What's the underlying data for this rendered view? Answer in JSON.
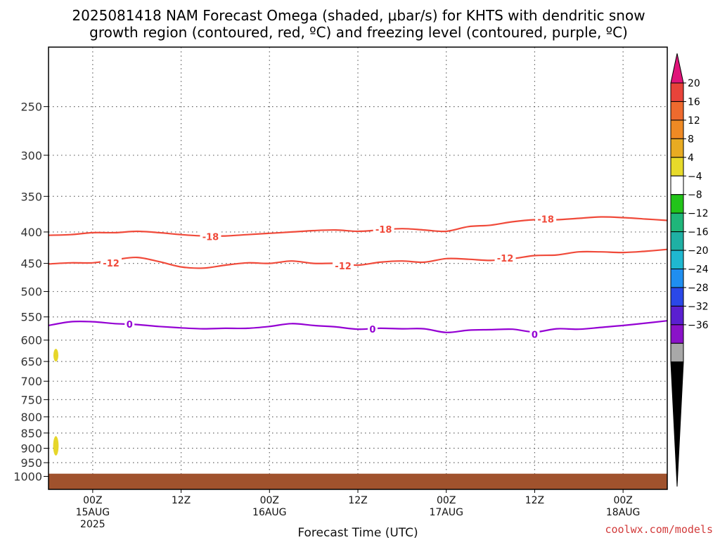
{
  "title": {
    "line1": "2025081418 NAM Forecast Omega (shaded, μbar/s) for KHTS with dendritic snow",
    "line2": "growth region (contoured, red, ºC) and freezing level (contoured, purple, ºC)"
  },
  "credit": "coolwx.com/models",
  "chart_data": {
    "type": "line",
    "title": "2025081418 NAM Forecast Omega (shaded, μbar/s) for KHTS with dendritic snow growth region (contoured, red, ºC) and freezing level (contoured, purple, ºC)",
    "xlabel": "Forecast Time (UTC)",
    "ylabel": "",
    "x_unit": "forecast hour from 2025081418",
    "xlim": [
      0,
      84
    ],
    "y_scale": "log-pressure (inverted)",
    "ylim": [
      1050,
      200
    ],
    "grid": true,
    "y_ticks": [
      250,
      300,
      350,
      400,
      450,
      500,
      550,
      600,
      650,
      700,
      750,
      800,
      850,
      900,
      950,
      1000
    ],
    "y_tick_labels": [
      "250",
      "300",
      "350",
      "400",
      "450",
      "500",
      "550",
      "600",
      "650",
      "700",
      "750",
      "800",
      "850",
      "900",
      "950",
      "1000"
    ],
    "x_ticks": [
      {
        "hour": 6,
        "labels": [
          "00Z",
          "15AUG",
          "2025"
        ]
      },
      {
        "hour": 18,
        "labels": [
          "12Z"
        ]
      },
      {
        "hour": 30,
        "labels": [
          "00Z",
          "16AUG"
        ]
      },
      {
        "hour": 42,
        "labels": [
          "12Z"
        ]
      },
      {
        "hour": 54,
        "labels": [
          "00Z",
          "17AUG"
        ]
      },
      {
        "hour": 66,
        "labels": [
          "12Z"
        ]
      },
      {
        "hour": 78,
        "labels": [
          "00Z",
          "18AUG"
        ]
      }
    ],
    "series": [
      {
        "contour_label": "-18",
        "color": "#f04a3a",
        "x": [
          0,
          3,
          6,
          9,
          12,
          15,
          18,
          21,
          24,
          27,
          30,
          33,
          36,
          39,
          42,
          45,
          48,
          51,
          54,
          57,
          60,
          63,
          66,
          69,
          72,
          75,
          78,
          81,
          84
        ],
        "y": [
          405,
          404,
          401,
          401,
          399,
          401,
          404,
          406,
          406,
          404,
          402,
          400,
          398,
          397,
          399,
          397,
          395,
          397,
          399,
          392,
          390,
          385,
          382,
          382,
          380,
          378,
          379,
          381,
          383
        ],
        "label_positions": [
          {
            "x": 22,
            "y": 407
          },
          {
            "x": 45.5,
            "y": 396
          },
          {
            "x": 67.5,
            "y": 381
          }
        ]
      },
      {
        "contour_label": "-12",
        "color": "#f04a3a",
        "x": [
          0,
          3,
          6,
          9,
          12,
          15,
          18,
          21,
          24,
          27,
          30,
          33,
          36,
          39,
          42,
          45,
          48,
          51,
          54,
          57,
          60,
          63,
          66,
          69,
          72,
          75,
          78,
          81,
          84
        ],
        "y": [
          451,
          449,
          449,
          444,
          440,
          447,
          456,
          458,
          453,
          449,
          450,
          446,
          450,
          450,
          453,
          448,
          446,
          448,
          442,
          443,
          445,
          442,
          437,
          436,
          431,
          431,
          432,
          430,
          427
        ],
        "label_positions": [
          {
            "x": 8.5,
            "y": 449
          },
          {
            "x": 40,
            "y": 454
          },
          {
            "x": 62,
            "y": 441
          }
        ]
      },
      {
        "contour_label": "0",
        "color": "#9400d3",
        "x": [
          0,
          3,
          6,
          9,
          12,
          15,
          18,
          21,
          24,
          27,
          30,
          33,
          36,
          39,
          42,
          45,
          48,
          51,
          54,
          57,
          60,
          63,
          66,
          69,
          72,
          75,
          78,
          81,
          84
        ],
        "y": [
          568,
          560,
          560,
          564,
          566,
          570,
          573,
          575,
          574,
          574,
          570,
          564,
          568,
          571,
          576,
          574,
          575,
          575,
          583,
          578,
          577,
          576,
          582,
          575,
          576,
          572,
          568,
          563,
          558
        ],
        "label_positions": [
          {
            "x": 11,
            "y": 565
          },
          {
            "x": 44,
            "y": 576
          },
          {
            "x": 66,
            "y": 587
          }
        ]
      }
    ],
    "shaded_features": [
      {
        "type": "omega-shading",
        "color": "#e6d62a",
        "x_center": 1.0,
        "p_range": [
          620,
          650
        ]
      },
      {
        "type": "omega-shading",
        "color": "#e6d62a",
        "x_center": 1.0,
        "p_range": [
          860,
          925
        ]
      },
      {
        "type": "below-ground",
        "color": "#a0522d",
        "x_range": [
          0,
          84
        ],
        "p_surface": 990
      }
    ],
    "colorbar": {
      "label_values": [
        "20",
        "16",
        "12",
        "8",
        "4",
        "−4",
        "−8",
        "−12",
        "−16",
        "−20",
        "−24",
        "−28",
        "−32",
        "−36"
      ],
      "bins_top_to_bottom": [
        {
          "range": "16–20",
          "color": "#e8433a"
        },
        {
          "range": "12–16",
          "color": "#ee6a2e"
        },
        {
          "range": "8–12",
          "color": "#ef8a24"
        },
        {
          "range": "4–8",
          "color": "#e8ab22"
        },
        {
          "range": "0–4",
          "color": "#e7da2a"
        },
        {
          "range": "−4–4",
          "color": "#ffffff"
        },
        {
          "range": "−8–−4",
          "color": "#22c41a"
        },
        {
          "range": "−12–−8",
          "color": "#1fb67a"
        },
        {
          "range": "−16–−12",
          "color": "#1fb0a4"
        },
        {
          "range": "−20–−16",
          "color": "#1fb8d0"
        },
        {
          "range": "−24–−20",
          "color": "#1f8ef0"
        },
        {
          "range": "−28–−24",
          "color": "#2a48e8"
        },
        {
          "range": "−32–−28",
          "color": "#5a1fd0"
        },
        {
          "range": "−36–−32",
          "color": "#8a12c8"
        },
        {
          "range": "extra",
          "color": "#a8a8a8"
        }
      ],
      "top_arrow_color": "#e0147a",
      "bottom_arrow_color": "#000000"
    }
  }
}
